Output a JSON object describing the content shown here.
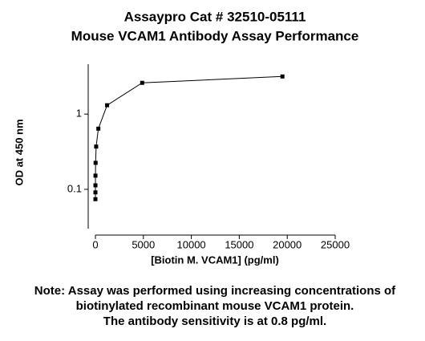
{
  "chart_data": {
    "type": "line",
    "title": [
      "Assaypro Cat # 32510-05111",
      "Mouse VCAM1 Antibody Assay Performance"
    ],
    "x_label": "[Biotin M. VCAM1] (pg/ml)",
    "y_label": "OD at 450 nm",
    "x": [
      19500,
      4875,
      1219,
      305,
      76,
      19,
      4.8,
      1.2,
      0.3,
      0.07
    ],
    "series": [
      {
        "color": "#000000",
        "values": [
          3.16,
          2.6,
          1.31,
          0.64,
          0.37,
          0.225,
          0.152,
          0.113,
          0.091,
          0.074
        ]
      }
    ],
    "xlim": [
      0,
      25000
    ],
    "xticks": [
      0,
      5000,
      10000,
      15000,
      20000,
      25000
    ],
    "ylim": [
      0.03,
      4.6
    ],
    "yticks": [
      0.1,
      1
    ],
    "ylog": true,
    "grid": false,
    "note": [
      "Note: Assay was performed using increasing concentrations of",
      "biotinylated recombinant mouse VCAM1 protein.",
      "The antibody sensitivity is at 0.8 pg/ml."
    ]
  }
}
